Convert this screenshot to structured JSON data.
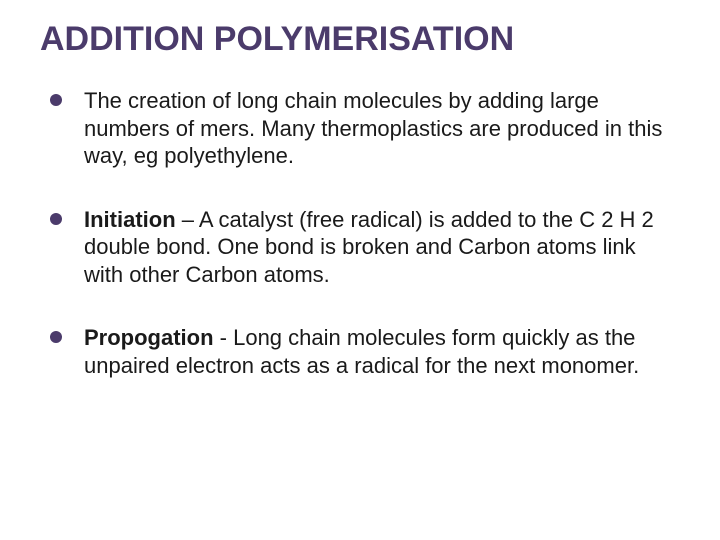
{
  "slide": {
    "title": "ADDITION POLYMERISATION",
    "title_color": "#4b3b6b",
    "title_fontsize": 34,
    "bullet_color": "#4b3b6b",
    "bullet_diameter": 12,
    "body_fontsize": 22,
    "body_color": "#1a1a1a",
    "background_color": "#ffffff",
    "items": [
      {
        "bold": "",
        "text": "The creation of long chain molecules by adding large numbers of mers. Many thermoplastics are produced in this way, eg  polyethylene."
      },
      {
        "bold": "Initiation",
        "text": " – A catalyst (free radical) is added to the C 2 H 2 double bond. One bond is broken and Carbon atoms link with other Carbon atoms."
      },
      {
        "bold": "Propogation",
        "text": " - Long chain molecules form quickly as the unpaired electron acts as a radical for the next monomer."
      }
    ]
  }
}
